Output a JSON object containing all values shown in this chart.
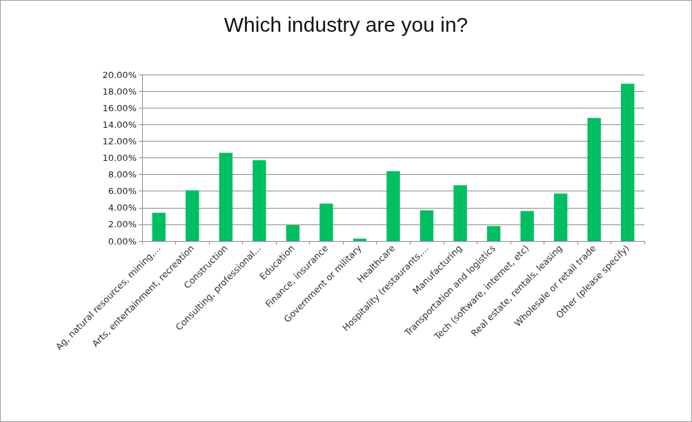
{
  "chart_data": {
    "type": "bar",
    "title": "Which industry are you in?",
    "categories": [
      "Ag, natural resources, mining,...",
      "Arts, entertainment, recreation",
      "Construction",
      "Consulting, professional...",
      "Education",
      "Finance, insurance",
      "Government or military",
      "Healthcare",
      "Hospitality (restaurants,...",
      "Manufacturing",
      "Transportation and logistics",
      "Tech (software, internet, etc)",
      "Real estate, rentals, leasing",
      "Wholesale or retail trade",
      "Other (please specify)"
    ],
    "values": [
      3.4,
      6.1,
      10.6,
      9.7,
      1.9,
      4.5,
      0.3,
      8.4,
      3.7,
      6.7,
      1.8,
      3.6,
      5.7,
      14.8,
      18.9
    ],
    "color": "#00bf63",
    "ylim": [
      0,
      20
    ],
    "yticks": [
      {
        "value": 0,
        "label": "0.00%"
      },
      {
        "value": 2,
        "label": "2.00%"
      },
      {
        "value": 4,
        "label": "4.00%"
      },
      {
        "value": 6,
        "label": "6.00%"
      },
      {
        "value": 8,
        "label": "8.00%"
      },
      {
        "value": 10,
        "label": "10.00%"
      },
      {
        "value": 12,
        "label": "12.00%"
      },
      {
        "value": 14,
        "label": "14.00%"
      },
      {
        "value": 16,
        "label": "16.00%"
      },
      {
        "value": 18,
        "label": "18.00%"
      },
      {
        "value": 20,
        "label": "20.00%"
      }
    ],
    "grid": "y"
  }
}
